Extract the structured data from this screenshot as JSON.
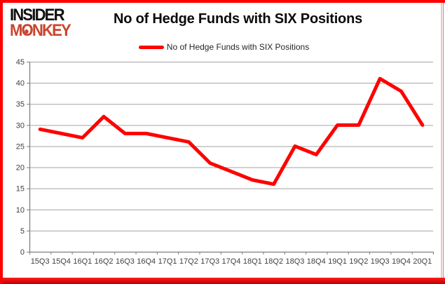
{
  "logo": {
    "line1": "INSIDER",
    "line2": "MONKEY"
  },
  "header": {
    "title": "No of Hedge Funds with SIX Positions"
  },
  "legend": {
    "label": "No of Hedge Funds with SIX Positions"
  },
  "chart_data": {
    "type": "line",
    "title": "No of Hedge Funds with SIX Positions",
    "series": [
      {
        "name": "No of Hedge Funds with SIX Positions",
        "values": [
          29,
          28,
          27,
          32,
          28,
          28,
          27,
          26,
          21,
          19,
          17,
          16,
          25,
          23,
          30,
          30,
          41,
          38,
          30
        ]
      }
    ],
    "categories": [
      "15Q3",
      "15Q4",
      "16Q1",
      "16Q2",
      "16Q3",
      "16Q4",
      "17Q1",
      "17Q2",
      "17Q3",
      "17Q4",
      "18Q1",
      "18Q2",
      "18Q3",
      "18Q4",
      "19Q1",
      "19Q2",
      "19Q3",
      "19Q4",
      "20Q1"
    ],
    "xlabel": "",
    "ylabel": "",
    "ylim": [
      0,
      45
    ],
    "y_ticks": [
      0,
      5,
      10,
      15,
      20,
      25,
      30,
      35,
      40,
      45
    ],
    "grid": true,
    "legend_position": "top-center",
    "line_color": "#ff0000"
  },
  "colors": {
    "frame_border": "#fe0000",
    "gridline": "#a3a3a3",
    "axis": "#7f7f7f",
    "tick_text": "#3f3f3f",
    "logo_monkey_red": "#c9452e"
  }
}
